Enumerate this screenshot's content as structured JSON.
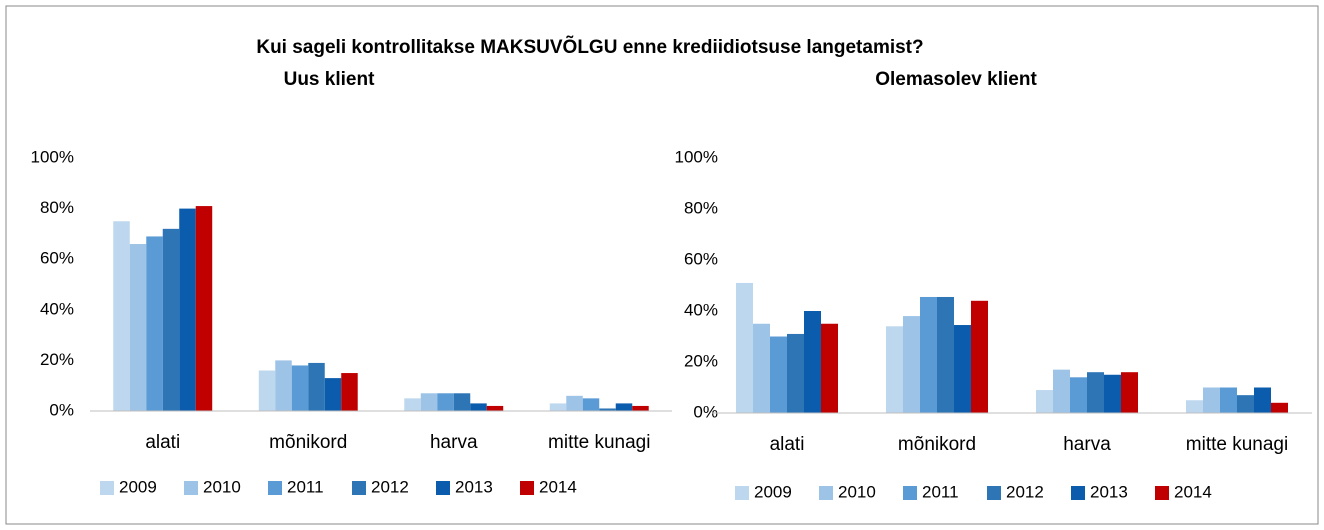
{
  "title": "Kui sageli kontrollitakse MAKSUVÕLGU enne krediidiotsuse langetamist?",
  "chart_data": [
    {
      "type": "bar",
      "title": "Uus klient",
      "categories": [
        "alati",
        "mõnikord",
        "harva",
        "mitte kunagi"
      ],
      "series": [
        {
          "name": "2009",
          "color": "#bdd7ee",
          "values": [
            75,
            16,
            5,
            3
          ]
        },
        {
          "name": "2010",
          "color": "#9dc3e6",
          "values": [
            66,
            20,
            7,
            6
          ]
        },
        {
          "name": "2011",
          "color": "#5b9bd5",
          "values": [
            69,
            18,
            7,
            5
          ]
        },
        {
          "name": "2012",
          "color": "#2e75b6",
          "values": [
            72,
            19,
            7,
            1
          ]
        },
        {
          "name": "2013",
          "color": "#0b5cad",
          "values": [
            80,
            13,
            3,
            3
          ]
        },
        {
          "name": "2014",
          "color": "#c00000",
          "values": [
            81,
            15,
            2,
            2
          ]
        }
      ],
      "ylim": [
        0,
        100
      ],
      "yticks": [
        {
          "value": 0,
          "label": "0%"
        },
        {
          "value": 20,
          "label": "20%"
        },
        {
          "value": 40,
          "label": "40%"
        },
        {
          "value": 60,
          "label": "60%"
        },
        {
          "value": 80,
          "label": "80%"
        },
        {
          "value": 100,
          "label": "100%"
        }
      ],
      "grid": false,
      "legend": "bottom"
    },
    {
      "type": "bar",
      "title": "Olemasolev klient",
      "categories": [
        "alati",
        "mõnikord",
        "harva",
        "mitte kunagi"
      ],
      "series": [
        {
          "name": "2009",
          "color": "#bdd7ee",
          "values": [
            51,
            34,
            9,
            5
          ]
        },
        {
          "name": "2010",
          "color": "#9dc3e6",
          "values": [
            35,
            38,
            17,
            10
          ]
        },
        {
          "name": "2011",
          "color": "#5b9bd5",
          "values": [
            30,
            45.5,
            14,
            10
          ]
        },
        {
          "name": "2012",
          "color": "#2e75b6",
          "values": [
            31,
            45.5,
            16,
            7
          ]
        },
        {
          "name": "2013",
          "color": "#0b5cad",
          "values": [
            40,
            34.5,
            15,
            10
          ]
        },
        {
          "name": "2014",
          "color": "#c00000",
          "values": [
            35,
            44,
            16,
            4
          ]
        }
      ],
      "ylim": [
        0,
        100
      ],
      "yticks": [
        {
          "value": 0,
          "label": "0%"
        },
        {
          "value": 20,
          "label": "20%"
        },
        {
          "value": 40,
          "label": "40%"
        },
        {
          "value": 60,
          "label": "60%"
        },
        {
          "value": 80,
          "label": "80%"
        },
        {
          "value": 100,
          "label": "100%"
        }
      ],
      "grid": false,
      "legend": "bottom"
    }
  ]
}
